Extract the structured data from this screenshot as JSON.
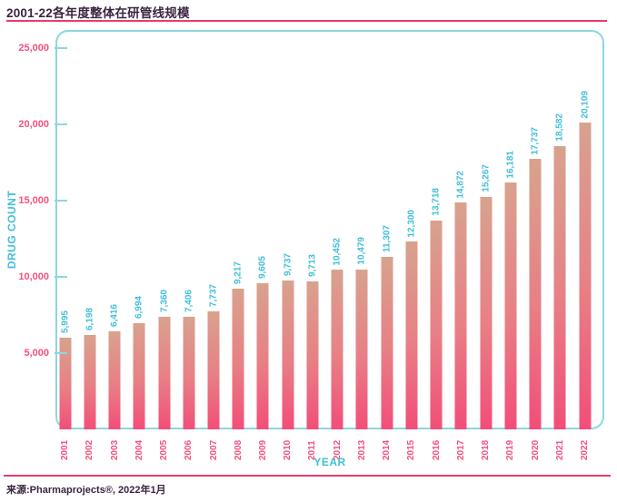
{
  "page": {
    "title": "2001-22各年度整体在研管线规模",
    "source": "来源:Pharmaprojects®, 2022年1月"
  },
  "chart_data": {
    "type": "bar",
    "title": "2001-22各年度整体在研管线规模",
    "xlabel": "YEAR",
    "ylabel": "DRUG COUNT",
    "categories": [
      "2001",
      "2002",
      "2003",
      "2004",
      "2005",
      "2006",
      "2007",
      "2008",
      "2009",
      "2010",
      "2011",
      "2012",
      "2013",
      "2014",
      "2015",
      "2016",
      "2017",
      "2018",
      "2019",
      "2020",
      "2021",
      "2022"
    ],
    "values": [
      5995,
      6198,
      6416,
      6994,
      7360,
      7406,
      7737,
      9217,
      9605,
      9737,
      9713,
      10452,
      10479,
      11307,
      12300,
      13718,
      14872,
      15267,
      16181,
      17737,
      18582,
      20109
    ],
    "ylim": [
      0,
      26200
    ],
    "yticks": [
      5000,
      10000,
      15000,
      20000,
      25000
    ],
    "grid": false,
    "legend": null,
    "value_label_rotation": 90,
    "category_label_rotation": 90,
    "bar_gradient_top_to_bottom": [
      "#D8A28E",
      "#E87F85",
      "#F24E78"
    ],
    "colors": {
      "teal_text": "#41BFD9",
      "teal_border": "#8AD7E0",
      "pink_text": "#F4517E",
      "divider_pink": "#ED3A6B",
      "title_text": "#3A2540",
      "background": "#FFFFFF"
    }
  }
}
